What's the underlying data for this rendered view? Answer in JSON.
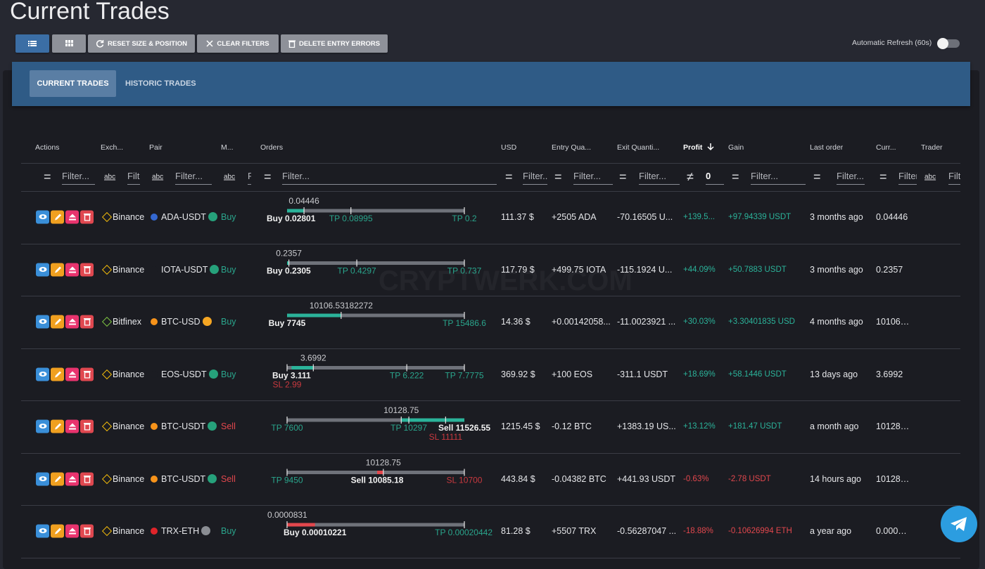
{
  "header": {
    "title": "Current Trades"
  },
  "toolbar": {
    "buttons": [
      "RESET SIZE & POSITION",
      "CLEAR FILTERS",
      "DELETE ENTRY ERRORS"
    ],
    "refresh_label": "Automatic Refresh (60s)"
  },
  "tabs": [
    "CURRENT TRADES",
    "HISTORIC TRADES"
  ],
  "watermark": "CRYPTWERK.COM",
  "table": {
    "columns": [
      "Actions",
      "Exch...",
      "Pair",
      "M...",
      "Orders",
      "USD",
      "Entry Qua...",
      "Exit Quanti...",
      "Profit",
      "Gain",
      "Last order",
      "Curr...",
      "Trader"
    ],
    "filters": [
      {
        "op": "=",
        "text": "Filter..."
      },
      {
        "op": "abc",
        "text": "Filter..."
      },
      {
        "op": "abc",
        "text": "Filter..."
      },
      {
        "op": "abc",
        "text": "Filter..."
      },
      {
        "op": "=",
        "text": "Filter..."
      },
      {
        "op": "=",
        "text": "Filter..."
      },
      {
        "op": "=",
        "text": "Filter..."
      },
      {
        "op": "=",
        "text": "Filter..."
      },
      {
        "op": "≠",
        "text": "0"
      },
      {
        "op": "=",
        "text": "Filter..."
      },
      {
        "op": "=",
        "text": "Filter..."
      },
      {
        "op": "=",
        "text": "Filter..."
      },
      {
        "op": "abc",
        "text": "Filter..."
      }
    ],
    "order_labels": {
      "target": "TP",
      "stop": "SL"
    },
    "rows": [
      {
        "exchange": "Binance",
        "exchange_color": "#f0b90b",
        "pair": "ADA-USDT",
        "base_color": "#3468d1",
        "quote_color": "#26a17b",
        "side": "Buy",
        "orders": {
          "current": 0.04446,
          "entry": 0.02801,
          "targets": [
            0.08995,
            0.2
          ],
          "stop": null
        },
        "usd": "111.37 $",
        "entry_qty": "+2505 ADA",
        "exit_qty": "-70.16505 U...",
        "profit": "+139.5...",
        "gain": "+97.94339 USDT",
        "last_order": "3 months ago"
      },
      {
        "exchange": "Binance",
        "exchange_color": "#f0b90b",
        "pair": "IOTA-USDT",
        "base_color": "#1b1c22",
        "quote_color": "#26a17b",
        "side": "Buy",
        "orders": {
          "current": 0.2357,
          "entry": 0.2305,
          "targets": [
            0.4297,
            0.737
          ],
          "stop": null
        },
        "usd": "117.79 $",
        "entry_qty": "+499.75 IOTA",
        "exit_qty": "-115.1924 U...",
        "profit": "+44.09%",
        "gain": "+50.7883 USDT",
        "last_order": "3 months ago"
      },
      {
        "exchange": "Bitfinex",
        "exchange_color": "#7cc242",
        "pair": "BTC-USD",
        "base_color": "#f7931a",
        "quote_color": "#f5a623",
        "side": "Buy",
        "orders": {
          "current": 10106.53182272,
          "entry": 7745,
          "targets": [
            15486.6
          ],
          "stop": null
        },
        "usd": "14.36 $",
        "entry_qty": "+0.00142058...",
        "exit_qty": "-11.0023921 ...",
        "profit": "+30.03%",
        "gain": "+3.30401835 USD",
        "last_order": "4 months ago"
      },
      {
        "exchange": "Binance",
        "exchange_color": "#f0b90b",
        "pair": "EOS-USDT",
        "base_color": "#1b1c22",
        "quote_color": "#26a17b",
        "side": "Buy",
        "orders": {
          "current": 3.6992,
          "entry": 3.111,
          "targets": [
            6.222,
            7.7775
          ],
          "stop": 2.99
        },
        "usd": "369.92 $",
        "entry_qty": "+100 EOS",
        "exit_qty": "-311.1 USDT",
        "profit": "+18.69%",
        "gain": "+58.1446 USDT",
        "last_order": "13 days ago"
      },
      {
        "exchange": "Binance",
        "exchange_color": "#f0b90b",
        "pair": "BTC-USDT",
        "base_color": "#f7931a",
        "quote_color": "#26a17b",
        "side": "Sell",
        "orders": {
          "current": 10128.75,
          "entry": 11526.55,
          "targets": [
            7600,
            10297
          ],
          "stop": 11111
        },
        "usd": "1215.45 $",
        "entry_qty": "-0.12 BTC",
        "exit_qty": "+1383.19 US...",
        "profit": "+13.12%",
        "gain": "+181.47 USDT",
        "last_order": "a month ago"
      },
      {
        "exchange": "Binance",
        "exchange_color": "#f0b90b",
        "pair": "BTC-USDT",
        "base_color": "#f7931a",
        "quote_color": "#26a17b",
        "side": "Sell",
        "orders": {
          "current": 10128.75,
          "entry": 10085.18,
          "targets": [
            9450
          ],
          "stop": 10700
        },
        "usd": "443.84 $",
        "entry_qty": "-0.04382 BTC",
        "exit_qty": "+441.93 USDT",
        "profit": "-0.63%",
        "gain": "-2.78 USDT",
        "last_order": "14 hours ago"
      },
      {
        "exchange": "Binance",
        "exchange_color": "#f0b90b",
        "pair": "TRX-ETH",
        "base_color": "#e0242a",
        "quote_color": "#8a8d93",
        "side": "Buy",
        "orders": {
          "current": 8.31e-05,
          "entry": 0.00010221,
          "targets": [
            0.00020442
          ],
          "stop": null
        },
        "usd": "81.28 $",
        "entry_qty": "+5507 TRX",
        "exit_qty": "-0.56287047 ...",
        "profit": "-18.88%",
        "gain": "-0.10626994 ETH",
        "last_order": "a year ago"
      }
    ]
  }
}
